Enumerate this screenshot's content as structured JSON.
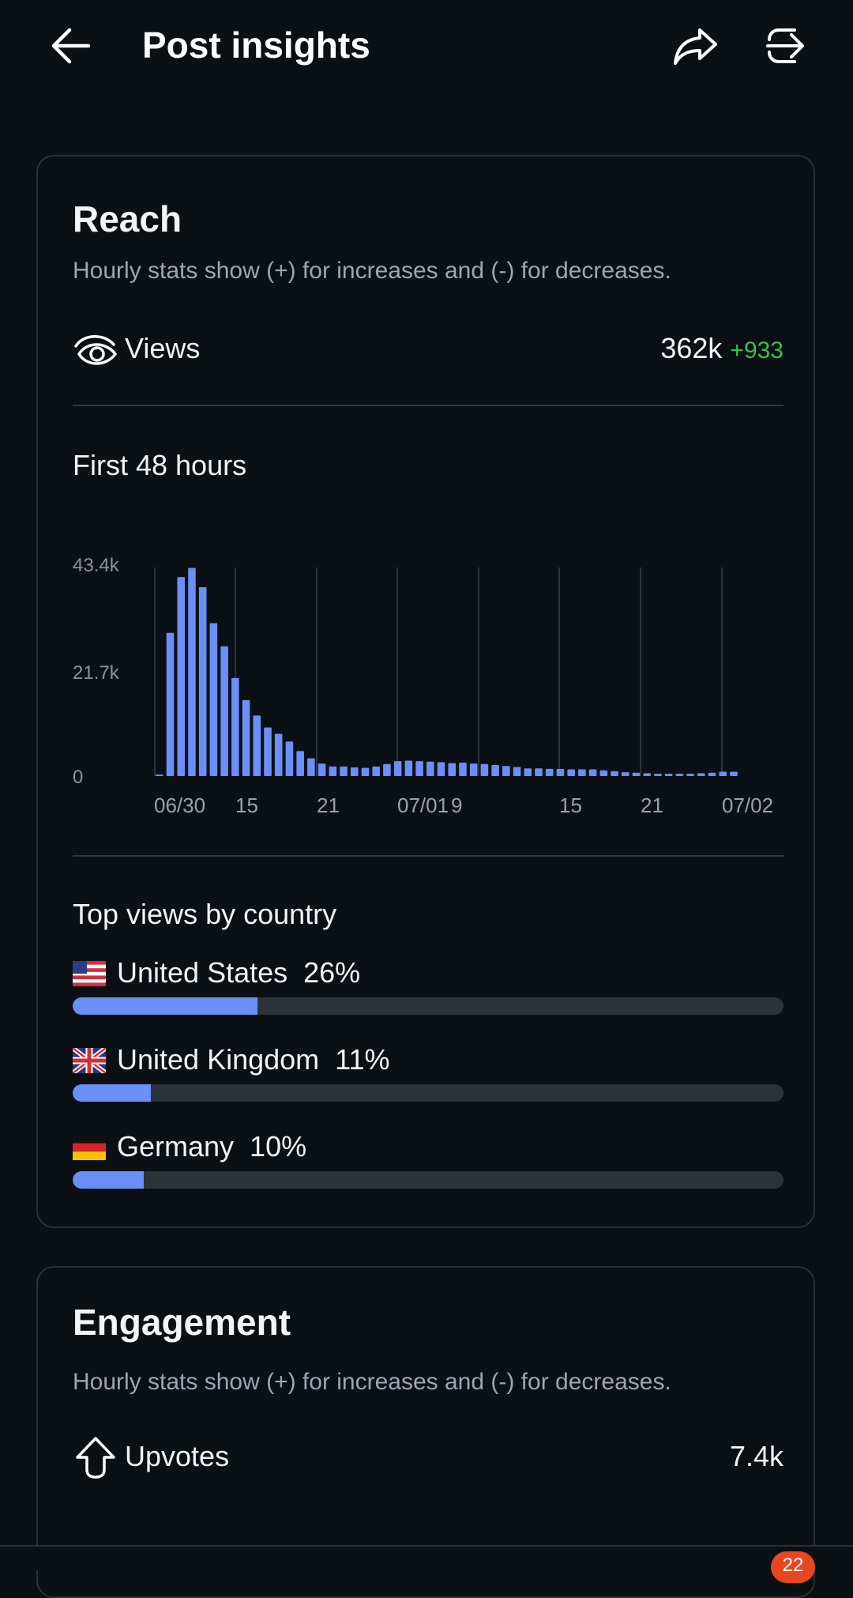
{
  "header": {
    "title": "Post insights",
    "back_icon": "arrow-left-icon",
    "share_icon": "share-icon",
    "crosspost_icon": "crosspost-icon"
  },
  "reach": {
    "title": "Reach",
    "subtitle": "Hourly stats show (+) for increases and (-) for decreases.",
    "views": {
      "icon": "eye-icon",
      "label": "Views",
      "value": "362k",
      "delta": "+933"
    },
    "chart_title": "First 48 hours",
    "countries_title": "Top views by country",
    "countries": [
      {
        "name": "United States",
        "flag": "us-flag-icon",
        "percent": "26%",
        "fraction": 0.26
      },
      {
        "name": "United Kingdom",
        "flag": "uk-flag-icon",
        "percent": "11%",
        "fraction": 0.11
      },
      {
        "name": "Germany",
        "flag": "de-flag-icon",
        "percent": "10%",
        "fraction": 0.1
      }
    ]
  },
  "engagement": {
    "title": "Engagement",
    "subtitle": "Hourly stats show (+) for increases and (-) for decreases.",
    "upvotes": {
      "icon": "upvote-icon",
      "label": "Upvotes",
      "value": "7.4k"
    }
  },
  "nav": {
    "badge": "22"
  },
  "colors": {
    "accent": "#6b8ef7",
    "positive": "#3cbe4c",
    "background": "#0b1015",
    "card_border": "#2b3136"
  },
  "chart_data": {
    "type": "bar",
    "title": "First 48 hours",
    "y_tick_labels": [
      "43.4k",
      "21.7k",
      "0"
    ],
    "ylim": [
      0,
      43400
    ],
    "x_tick_labels": [
      "06/30",
      "15",
      "21",
      "07/01",
      "9",
      "15",
      "21",
      "07/02"
    ],
    "grid": "vertical",
    "series": [
      {
        "values": [
          200,
          29800,
          41400,
          43300,
          39300,
          31800,
          27000,
          20400,
          15800,
          12600,
          10100,
          8800,
          7200,
          5200,
          3700,
          2600,
          2000,
          2000,
          1800,
          1700,
          2000,
          2500,
          3100,
          3200,
          3100,
          3000,
          2900,
          2700,
          2800,
          2600,
          2500,
          2300,
          2100,
          1900,
          1600,
          1600,
          1500,
          1500,
          1400,
          1400,
          1400,
          1200,
          1000,
          800,
          700,
          600,
          500,
          500,
          500,
          500,
          600,
          700,
          900,
          900
        ]
      }
    ]
  }
}
